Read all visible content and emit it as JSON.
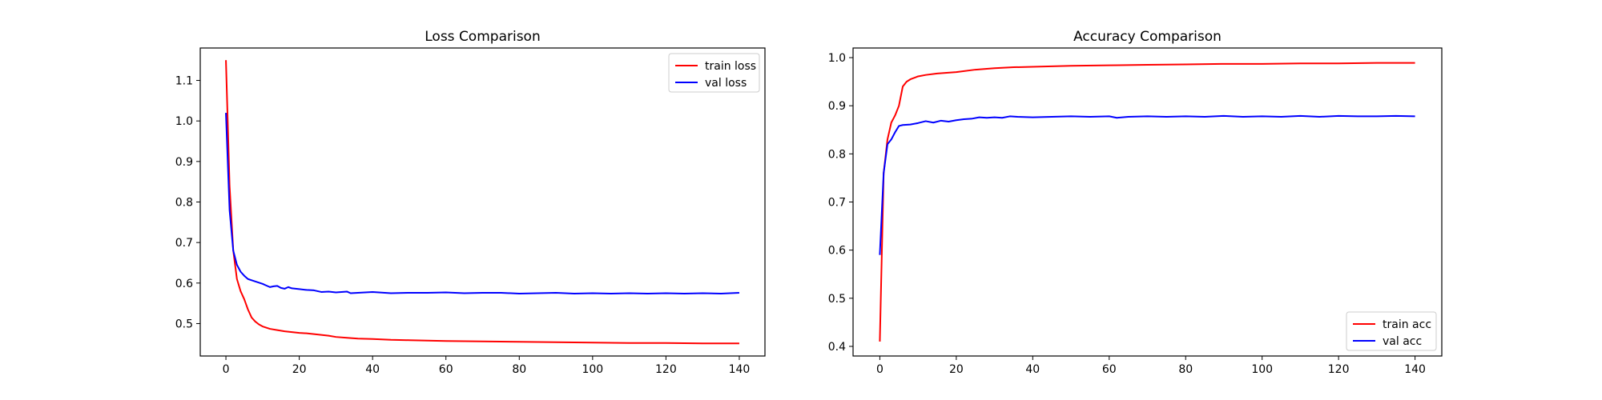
{
  "chart_data": [
    {
      "type": "line",
      "title": "Loss Comparison",
      "xlabel": "",
      "ylabel": "",
      "xlim": [
        -7,
        147
      ],
      "ylim": [
        0.42,
        1.18
      ],
      "xticks": [
        0,
        20,
        40,
        60,
        80,
        100,
        120,
        140
      ],
      "yticks": [
        0.5,
        0.6,
        0.7,
        0.8,
        0.9,
        1.0,
        1.1
      ],
      "grid": false,
      "legend_position": "upper right",
      "series": [
        {
          "name": "train loss",
          "color": "#ff0000",
          "points": [
            [
              0,
              1.15
            ],
            [
              1,
              0.84
            ],
            [
              2,
              0.68
            ],
            [
              3,
              0.61
            ],
            [
              4,
              0.58
            ],
            [
              5,
              0.56
            ],
            [
              6,
              0.535
            ],
            [
              7,
              0.515
            ],
            [
              8,
              0.505
            ],
            [
              9,
              0.498
            ],
            [
              10,
              0.493
            ],
            [
              12,
              0.487
            ],
            [
              14,
              0.484
            ],
            [
              16,
              0.481
            ],
            [
              18,
              0.479
            ],
            [
              20,
              0.477
            ],
            [
              22,
              0.476
            ],
            [
              25,
              0.473
            ],
            [
              28,
              0.47
            ],
            [
              30,
              0.467
            ],
            [
              33,
              0.465
            ],
            [
              36,
              0.463
            ],
            [
              40,
              0.462
            ],
            [
              45,
              0.46
            ],
            [
              50,
              0.459
            ],
            [
              55,
              0.458
            ],
            [
              60,
              0.457
            ],
            [
              70,
              0.456
            ],
            [
              80,
              0.455
            ],
            [
              90,
              0.454
            ],
            [
              100,
              0.453
            ],
            [
              110,
              0.452
            ],
            [
              120,
              0.452
            ],
            [
              130,
              0.451
            ],
            [
              140,
              0.451
            ]
          ]
        },
        {
          "name": "val loss",
          "color": "#0000ff",
          "points": [
            [
              0,
              1.02
            ],
            [
              1,
              0.78
            ],
            [
              2,
              0.68
            ],
            [
              3,
              0.645
            ],
            [
              4,
              0.628
            ],
            [
              5,
              0.618
            ],
            [
              6,
              0.61
            ],
            [
              7,
              0.607
            ],
            [
              8,
              0.604
            ],
            [
              9,
              0.601
            ],
            [
              10,
              0.598
            ],
            [
              11,
              0.594
            ],
            [
              12,
              0.59
            ],
            [
              13,
              0.592
            ],
            [
              14,
              0.593
            ],
            [
              15,
              0.588
            ],
            [
              16,
              0.586
            ],
            [
              17,
              0.59
            ],
            [
              18,
              0.587
            ],
            [
              20,
              0.585
            ],
            [
              22,
              0.583
            ],
            [
              24,
              0.582
            ],
            [
              26,
              0.578
            ],
            [
              28,
              0.579
            ],
            [
              30,
              0.577
            ],
            [
              33,
              0.579
            ],
            [
              34,
              0.575
            ],
            [
              36,
              0.576
            ],
            [
              40,
              0.578
            ],
            [
              45,
              0.575
            ],
            [
              50,
              0.576
            ],
            [
              55,
              0.576
            ],
            [
              60,
              0.577
            ],
            [
              65,
              0.575
            ],
            [
              70,
              0.576
            ],
            [
              75,
              0.576
            ],
            [
              80,
              0.574
            ],
            [
              85,
              0.575
            ],
            [
              90,
              0.576
            ],
            [
              95,
              0.574
            ],
            [
              100,
              0.575
            ],
            [
              105,
              0.574
            ],
            [
              110,
              0.575
            ],
            [
              115,
              0.574
            ],
            [
              120,
              0.575
            ],
            [
              125,
              0.574
            ],
            [
              130,
              0.575
            ],
            [
              135,
              0.574
            ],
            [
              140,
              0.576
            ]
          ]
        }
      ]
    },
    {
      "type": "line",
      "title": "Accuracy Comparison",
      "xlabel": "",
      "ylabel": "",
      "xlim": [
        -7,
        147
      ],
      "ylim": [
        0.38,
        1.02
      ],
      "xticks": [
        0,
        20,
        40,
        60,
        80,
        100,
        120,
        140
      ],
      "yticks": [
        0.4,
        0.5,
        0.6,
        0.7,
        0.8,
        0.9,
        1.0
      ],
      "grid": false,
      "legend_position": "lower right",
      "series": [
        {
          "name": "train acc",
          "color": "#ff0000",
          "points": [
            [
              0,
              0.41
            ],
            [
              1,
              0.76
            ],
            [
              2,
              0.83
            ],
            [
              3,
              0.865
            ],
            [
              4,
              0.88
            ],
            [
              5,
              0.9
            ],
            [
              6,
              0.94
            ],
            [
              7,
              0.95
            ],
            [
              8,
              0.955
            ],
            [
              10,
              0.961
            ],
            [
              12,
              0.964
            ],
            [
              15,
              0.967
            ],
            [
              20,
              0.97
            ],
            [
              25,
              0.975
            ],
            [
              30,
              0.978
            ],
            [
              35,
              0.98
            ],
            [
              40,
              0.981
            ],
            [
              50,
              0.983
            ],
            [
              60,
              0.984
            ],
            [
              70,
              0.985
            ],
            [
              80,
              0.986
            ],
            [
              90,
              0.987
            ],
            [
              100,
              0.987
            ],
            [
              110,
              0.988
            ],
            [
              120,
              0.988
            ],
            [
              130,
              0.989
            ],
            [
              140,
              0.989
            ]
          ]
        },
        {
          "name": "val acc",
          "color": "#0000ff",
          "points": [
            [
              0,
              0.59
            ],
            [
              1,
              0.76
            ],
            [
              2,
              0.82
            ],
            [
              3,
              0.83
            ],
            [
              4,
              0.845
            ],
            [
              5,
              0.858
            ],
            [
              6,
              0.86
            ],
            [
              8,
              0.861
            ],
            [
              10,
              0.864
            ],
            [
              12,
              0.868
            ],
            [
              14,
              0.865
            ],
            [
              16,
              0.869
            ],
            [
              18,
              0.867
            ],
            [
              20,
              0.87
            ],
            [
              22,
              0.872
            ],
            [
              24,
              0.873
            ],
            [
              26,
              0.876
            ],
            [
              28,
              0.875
            ],
            [
              30,
              0.876
            ],
            [
              32,
              0.875
            ],
            [
              34,
              0.878
            ],
            [
              36,
              0.877
            ],
            [
              40,
              0.876
            ],
            [
              45,
              0.877
            ],
            [
              50,
              0.878
            ],
            [
              55,
              0.877
            ],
            [
              60,
              0.878
            ],
            [
              62,
              0.875
            ],
            [
              65,
              0.877
            ],
            [
              70,
              0.878
            ],
            [
              75,
              0.877
            ],
            [
              80,
              0.878
            ],
            [
              85,
              0.877
            ],
            [
              90,
              0.879
            ],
            [
              95,
              0.877
            ],
            [
              100,
              0.878
            ],
            [
              105,
              0.877
            ],
            [
              110,
              0.879
            ],
            [
              115,
              0.877
            ],
            [
              120,
              0.879
            ],
            [
              125,
              0.878
            ],
            [
              130,
              0.878
            ],
            [
              135,
              0.879
            ],
            [
              140,
              0.878
            ]
          ]
        }
      ]
    }
  ]
}
